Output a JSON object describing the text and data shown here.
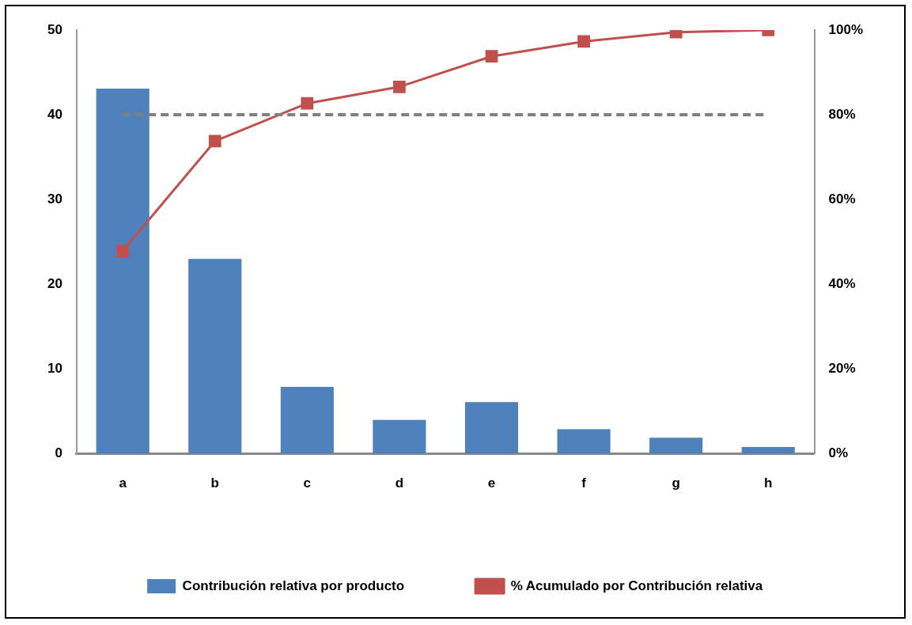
{
  "chart_data": {
    "type": "bar",
    "categories": [
      "a",
      "b",
      "c",
      "d",
      "e",
      "f",
      "g",
      "h"
    ],
    "series": [
      {
        "name": "Contribución relativa por producto",
        "color": "#4f81bd",
        "values": [
          43.1,
          23.0,
          7.9,
          4.0,
          6.1,
          2.9,
          1.9,
          0.8
        ]
      },
      {
        "name": "% Acumulado por Contribución relativa",
        "type": "line",
        "axis": "y2",
        "color": "#c0504d",
        "marker": "square",
        "values": [
          47.9,
          73.8,
          82.7,
          86.6,
          93.8,
          97.3,
          99.5,
          100
        ]
      }
    ],
    "ylim": [
      0,
      50
    ],
    "yticks": [
      0,
      10,
      20,
      30,
      40,
      50
    ],
    "y2lim": [
      0,
      100
    ],
    "y2ticks": [
      {
        "value": 0,
        "label": "0%"
      },
      {
        "value": 20,
        "label": "20%"
      },
      {
        "value": 40,
        "label": "40%"
      },
      {
        "value": 60,
        "label": "60%"
      },
      {
        "value": 80,
        "label": "80%"
      },
      {
        "value": 100,
        "label": "100%"
      }
    ],
    "ref_lines": [
      {
        "axis": "y2",
        "value": 80,
        "color": "#808080",
        "line_style": "dashed"
      }
    ],
    "grid": false,
    "legend": "bottom"
  }
}
